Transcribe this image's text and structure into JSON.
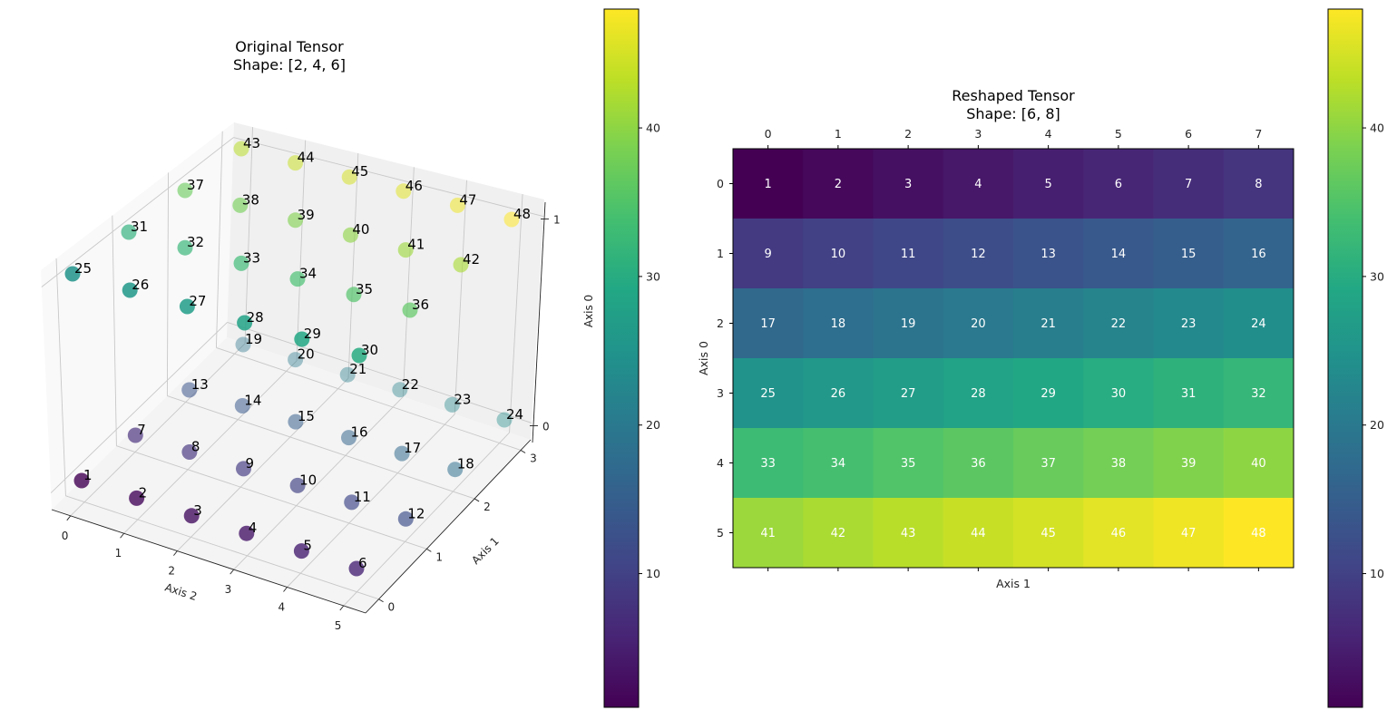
{
  "colormap": [
    "#440154",
    "#482475",
    "#414487",
    "#355f8d",
    "#2a788e",
    "#21918c",
    "#22a884",
    "#44bf70",
    "#7ad151",
    "#bddf26",
    "#fde725"
  ],
  "chart_data": [
    {
      "type": "scatter",
      "subtype": "scatter3d",
      "title": "Original Tensor\nShape: [2, 4, 6]",
      "title_lines": [
        "Original Tensor",
        "Shape: [2, 4, 6]"
      ],
      "xlabel": "Axis 2",
      "ylabel": "Axis 1",
      "zlabel": "Axis 0",
      "xticks": [
        "0",
        "1",
        "2",
        "3",
        "4",
        "5"
      ],
      "yticks": [
        "0",
        "1",
        "2",
        "3"
      ],
      "zticks": [
        "0",
        "1"
      ],
      "point_fields": [
        "axis0",
        "axis1",
        "axis2",
        "value"
      ],
      "points": [
        [
          0,
          0,
          0,
          1
        ],
        [
          0,
          0,
          1,
          2
        ],
        [
          0,
          0,
          2,
          3
        ],
        [
          0,
          0,
          3,
          4
        ],
        [
          0,
          0,
          4,
          5
        ],
        [
          0,
          0,
          5,
          6
        ],
        [
          0,
          1,
          0,
          7
        ],
        [
          0,
          1,
          1,
          8
        ],
        [
          0,
          1,
          2,
          9
        ],
        [
          0,
          1,
          3,
          10
        ],
        [
          0,
          1,
          4,
          11
        ],
        [
          0,
          1,
          5,
          12
        ],
        [
          0,
          2,
          0,
          13
        ],
        [
          0,
          2,
          1,
          14
        ],
        [
          0,
          2,
          2,
          15
        ],
        [
          0,
          2,
          3,
          16
        ],
        [
          0,
          2,
          4,
          17
        ],
        [
          0,
          2,
          5,
          18
        ],
        [
          0,
          3,
          0,
          19
        ],
        [
          0,
          3,
          1,
          20
        ],
        [
          0,
          3,
          2,
          21
        ],
        [
          0,
          3,
          3,
          22
        ],
        [
          0,
          3,
          4,
          23
        ],
        [
          0,
          3,
          5,
          24
        ],
        [
          1,
          0,
          0,
          25
        ],
        [
          1,
          0,
          1,
          26
        ],
        [
          1,
          0,
          2,
          27
        ],
        [
          1,
          0,
          3,
          28
        ],
        [
          1,
          0,
          4,
          29
        ],
        [
          1,
          0,
          5,
          30
        ],
        [
          1,
          1,
          0,
          31
        ],
        [
          1,
          1,
          1,
          32
        ],
        [
          1,
          1,
          2,
          33
        ],
        [
          1,
          1,
          3,
          34
        ],
        [
          1,
          1,
          4,
          35
        ],
        [
          1,
          1,
          5,
          36
        ],
        [
          1,
          2,
          0,
          37
        ],
        [
          1,
          2,
          1,
          38
        ],
        [
          1,
          2,
          2,
          39
        ],
        [
          1,
          2,
          3,
          40
        ],
        [
          1,
          2,
          4,
          41
        ],
        [
          1,
          2,
          5,
          42
        ],
        [
          1,
          3,
          0,
          43
        ],
        [
          1,
          3,
          1,
          44
        ],
        [
          1,
          3,
          2,
          45
        ],
        [
          1,
          3,
          3,
          46
        ],
        [
          1,
          3,
          4,
          47
        ],
        [
          1,
          3,
          5,
          48
        ]
      ],
      "colorbar": {
        "range": [
          1,
          48
        ],
        "ticks": [
          "10",
          "20",
          "30",
          "40"
        ]
      }
    },
    {
      "type": "heatmap",
      "title": "Reshaped Tensor\nShape: [6, 8]",
      "title_lines": [
        "Reshaped Tensor",
        "Shape: [6, 8]"
      ],
      "xlabel": "Axis 1",
      "ylabel": "Axis 0",
      "xticks": [
        "0",
        "1",
        "2",
        "3",
        "4",
        "5",
        "6",
        "7"
      ],
      "yticks": [
        "0",
        "1",
        "2",
        "3",
        "4",
        "5"
      ],
      "values": [
        [
          1,
          2,
          3,
          4,
          5,
          6,
          7,
          8
        ],
        [
          9,
          10,
          11,
          12,
          13,
          14,
          15,
          16
        ],
        [
          17,
          18,
          19,
          20,
          21,
          22,
          23,
          24
        ],
        [
          25,
          26,
          27,
          28,
          29,
          30,
          31,
          32
        ],
        [
          33,
          34,
          35,
          36,
          37,
          38,
          39,
          40
        ],
        [
          41,
          42,
          43,
          44,
          45,
          46,
          47,
          48
        ]
      ],
      "colorbar": {
        "range": [
          1,
          48
        ],
        "ticks": [
          "10",
          "20",
          "30",
          "40"
        ]
      }
    }
  ]
}
